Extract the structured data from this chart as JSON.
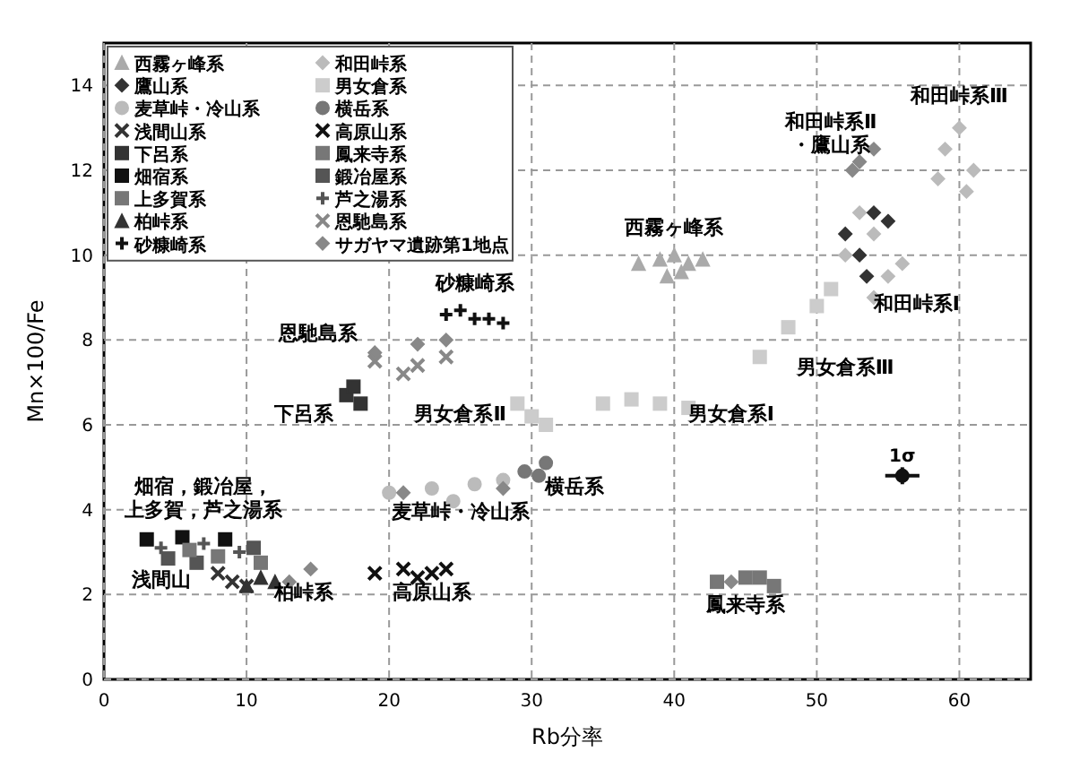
{
  "chart_data": {
    "type": "scatter",
    "xlabel": "Rb分率",
    "ylabel": "Mn×100/Fe",
    "xlim": [
      0,
      65
    ],
    "ylim": [
      0,
      15
    ],
    "xticks": [
      0,
      10,
      20,
      30,
      40,
      50,
      60
    ],
    "yticks": [
      0,
      2,
      4,
      6,
      8,
      10,
      12,
      14
    ],
    "grid": true,
    "legend": "top left",
    "series": [
      {
        "name": "西霧ヶ峰系",
        "marker": "triangle",
        "color": "#aaaaaa",
        "x": [
          37.5,
          39,
          40,
          41,
          42,
          39.5,
          40.5
        ],
        "values": [
          9.8,
          9.9,
          10,
          9.8,
          9.9,
          9.5,
          9.6
        ]
      },
      {
        "name": "和田峠系",
        "marker": "diamond",
        "color": "#bbbbbb",
        "x": [
          52,
          53,
          54,
          55,
          59,
          60,
          61,
          60.5,
          58.5,
          56,
          54
        ],
        "values": [
          10,
          11,
          10.5,
          9.5,
          12.5,
          13,
          12,
          11.5,
          11.8,
          9.8,
          9
        ]
      },
      {
        "name": "鷹山系",
        "marker": "diamond",
        "color": "#333333",
        "x": [
          52,
          53,
          54,
          53.5,
          55
        ],
        "values": [
          10.5,
          10,
          11,
          9.5,
          10.8
        ]
      },
      {
        "name": "男女倉系",
        "marker": "square",
        "color": "#cccccc",
        "x": [
          35,
          37,
          39,
          41,
          29,
          30,
          31,
          46,
          48,
          50,
          51
        ],
        "values": [
          6.5,
          6.6,
          6.5,
          6.4,
          6.5,
          6.2,
          6,
          7.6,
          8.3,
          8.8,
          9.2
        ]
      },
      {
        "name": "麦草峠・冷山系",
        "marker": "circle",
        "color": "#bbbbbb",
        "x": [
          20,
          23,
          26,
          28,
          24.5
        ],
        "values": [
          4.4,
          4.5,
          4.6,
          4.7,
          4.2
        ]
      },
      {
        "name": "横岳系",
        "marker": "circle",
        "color": "#777777",
        "x": [
          29.5,
          31,
          30.5
        ],
        "values": [
          4.9,
          5.1,
          4.8
        ]
      },
      {
        "name": "浅間山系",
        "marker": "x",
        "color": "#333333",
        "x": [
          8,
          9,
          10
        ],
        "values": [
          2.5,
          2.3,
          2.2
        ]
      },
      {
        "name": "高原山系",
        "marker": "x",
        "color": "#111111",
        "x": [
          19,
          21,
          23,
          22,
          24
        ],
        "values": [
          2.5,
          2.6,
          2.5,
          2.4,
          2.6
        ]
      },
      {
        "name": "下呂系",
        "marker": "square",
        "color": "#333333",
        "x": [
          17,
          18,
          17.5
        ],
        "values": [
          6.7,
          6.5,
          6.9
        ]
      },
      {
        "name": "鳳来寺系",
        "marker": "square",
        "color": "#777777",
        "x": [
          43,
          45,
          47,
          46
        ],
        "values": [
          2.3,
          2.4,
          2.2,
          2.4
        ]
      },
      {
        "name": "畑宿系",
        "marker": "square",
        "color": "#111111",
        "x": [
          3,
          5.5,
          8.5
        ],
        "values": [
          3.3,
          3.35,
          3.3
        ]
      },
      {
        "name": "鍛冶屋系",
        "marker": "square",
        "color": "#555555",
        "x": [
          4.5,
          6.5,
          10.5
        ],
        "values": [
          2.85,
          2.75,
          3.1
        ]
      },
      {
        "name": "上多賀系",
        "marker": "square",
        "color": "#777777",
        "x": [
          6,
          8,
          11
        ],
        "values": [
          3.05,
          2.9,
          2.75
        ]
      },
      {
        "name": "芦之湯系",
        "marker": "cross",
        "color": "#555555",
        "x": [
          4,
          7,
          9.5
        ],
        "values": [
          3.1,
          3.2,
          3
        ]
      },
      {
        "name": "柏峠系",
        "marker": "triangle",
        "color": "#333333",
        "x": [
          10,
          11,
          12
        ],
        "values": [
          2.2,
          2.4,
          2.3
        ]
      },
      {
        "name": "恩馳島系",
        "marker": "x",
        "color": "#888888",
        "x": [
          19,
          22,
          24,
          21
        ],
        "values": [
          7.5,
          7.4,
          7.6,
          7.2
        ]
      },
      {
        "name": "砂糠崎系",
        "marker": "cross",
        "color": "#111111",
        "x": [
          24,
          26,
          28,
          25,
          27
        ],
        "values": [
          8.6,
          8.5,
          8.4,
          8.7,
          8.5
        ]
      },
      {
        "name": "サガヤマ遺跡第1地点",
        "marker": "diamond",
        "color": "#888888",
        "x": [
          13,
          19,
          22,
          24,
          53,
          54,
          52.5,
          28,
          21,
          44,
          14.5
        ],
        "values": [
          2.3,
          7.7,
          7.9,
          8,
          12.2,
          12.5,
          12,
          4.5,
          4.4,
          2.3,
          2.6
        ]
      },
      {
        "name": "1σ",
        "marker": "circle",
        "color": "#111111",
        "x": [
          56
        ],
        "values": [
          4.8
        ],
        "xerrors": [
          1.2
        ],
        "errors": [
          0.2
        ]
      }
    ],
    "annotations": [
      "和田峠系Ⅲ",
      "和田峠系Ⅱ・鷹山系",
      "西霧ヶ峰系",
      "和田峠系Ⅰ",
      "砂糠崎系",
      "恩馳島系",
      "男女倉系Ⅲ",
      "下呂系",
      "男女倉系Ⅱ",
      "男女倉系Ⅰ",
      "横岳系",
      "麦草峠・冷山系",
      "畑宿，鍛冶屋，上多賀，芦之湯系",
      "浅間山",
      "柏峠系",
      "高原山系",
      "鳳来寺系"
    ]
  }
}
